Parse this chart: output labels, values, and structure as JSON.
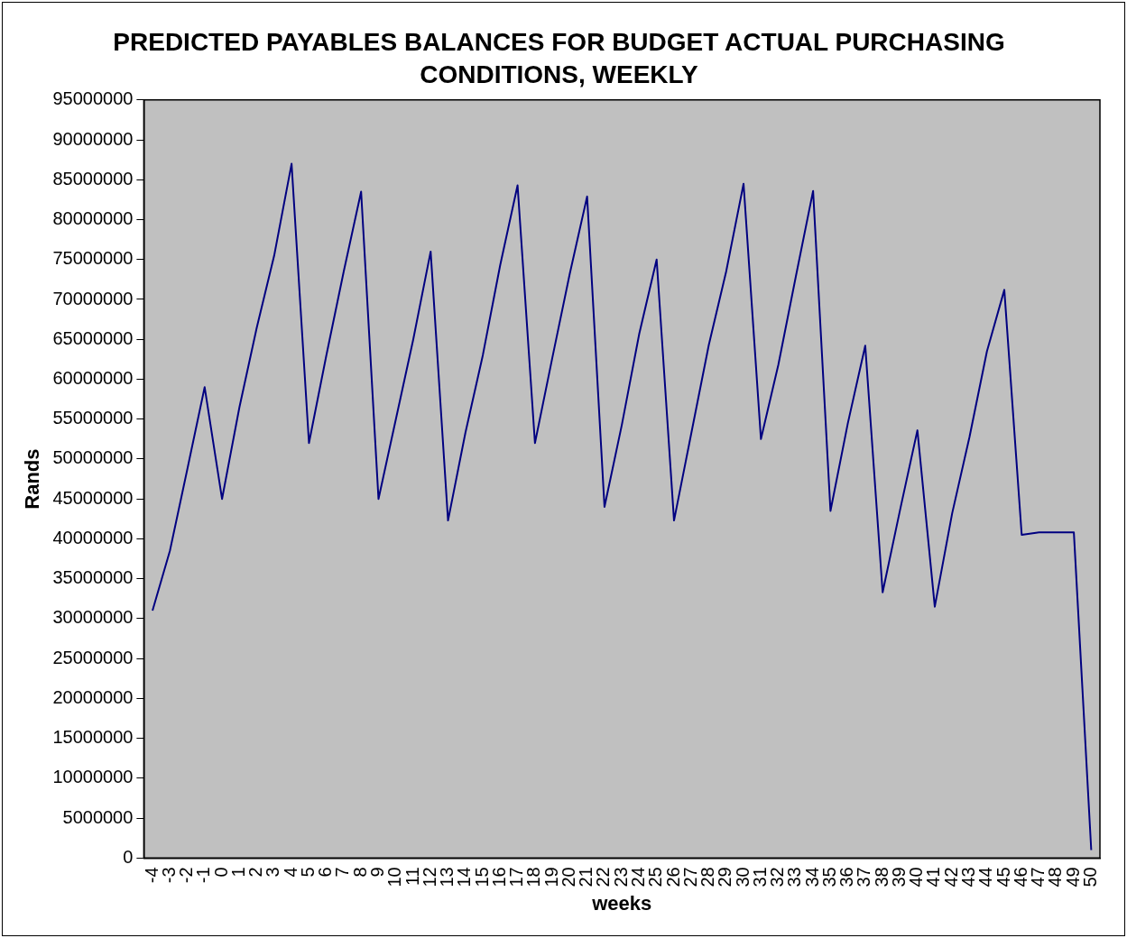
{
  "chart_data": {
    "type": "line",
    "title": "PREDICTED PAYABLES BALANCES FOR BUDGET ACTUAL PURCHASING CONDITIONS, WEEKLY",
    "xlabel": "weeks",
    "ylabel": "Rands",
    "categories": [
      "-4",
      "-3",
      "-2",
      "-1",
      "0",
      "1",
      "2",
      "3",
      "4",
      "5",
      "6",
      "7",
      "8",
      "9",
      "10",
      "11",
      "12",
      "13",
      "14",
      "15",
      "16",
      "17",
      "18",
      "19",
      "20",
      "21",
      "22",
      "23",
      "24",
      "25",
      "26",
      "27",
      "28",
      "29",
      "30",
      "31",
      "32",
      "33",
      "34",
      "35",
      "36",
      "37",
      "38",
      "39",
      "40",
      "41",
      "42",
      "43",
      "44",
      "45",
      "46",
      "47",
      "48",
      "49",
      "50"
    ],
    "series": [
      {
        "color": "#000080",
        "values": [
          31000000,
          38500000,
          48700000,
          59000000,
          45000000,
          56500000,
          66500000,
          75500000,
          87000000,
          52000000,
          63000000,
          73500000,
          83500000,
          45000000,
          55000000,
          65000000,
          76000000,
          42300000,
          53300000,
          63000000,
          74300000,
          84300000,
          52000000,
          62700000,
          73200000,
          82900000,
          44000000,
          54300000,
          65700000,
          75000000,
          42300000,
          53300000,
          64300000,
          73500000,
          84500000,
          52500000,
          61800000,
          72800000,
          83600000,
          43500000,
          54500000,
          64200000,
          33300000,
          43600000,
          53600000,
          31500000,
          43200000,
          52800000,
          63500000,
          71200000,
          40500000,
          40800000,
          40800000,
          40800000,
          1000000
        ]
      }
    ],
    "ylim": [
      0,
      95000000
    ],
    "yticks": [
      0,
      5000000,
      10000000,
      15000000,
      20000000,
      25000000,
      30000000,
      35000000,
      40000000,
      45000000,
      50000000,
      55000000,
      60000000,
      65000000,
      70000000,
      75000000,
      80000000,
      85000000,
      90000000,
      95000000
    ],
    "grid": false,
    "legend": false
  }
}
